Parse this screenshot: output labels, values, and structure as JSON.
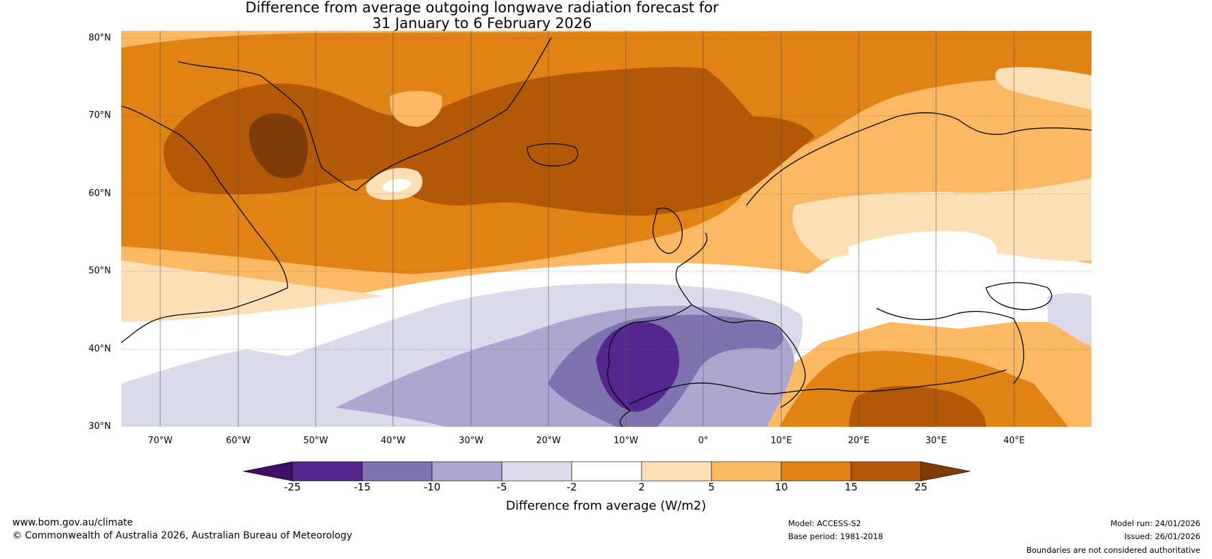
{
  "title": {
    "line1": "Difference from average outgoing longwave radiation forecast for",
    "line2": "31 January to 6 February 2026"
  },
  "map": {
    "lat_labels": [
      "80°N",
      "70°N",
      "60°N",
      "50°N",
      "40°N",
      "30°N"
    ],
    "lon_labels": [
      "70°W",
      "60°W",
      "50°W",
      "40°W",
      "30°W",
      "20°W",
      "10°W",
      "0°",
      "10°E",
      "20°E",
      "30°E",
      "40°E"
    ],
    "extent": {
      "lon_min": -75,
      "lon_max": 50,
      "lat_min": 30,
      "lat_max": 81
    }
  },
  "colorbar": {
    "ticks": [
      "-25",
      "-15",
      "-10",
      "-5",
      "-2",
      "2",
      "5",
      "10",
      "15",
      "25"
    ],
    "colors": [
      "#3f0f68",
      "#54278f",
      "#7e73ae",
      "#aca6d0",
      "#dadaeb",
      "#ffffff",
      "#fee0b6",
      "#fdb863",
      "#e08214",
      "#b35806",
      "#7f3b08"
    ],
    "label": "Difference from average (W/m2)"
  },
  "footer": {
    "website": "www.bom.gov.au/climate",
    "copyright": "© Commonwealth of Australia 2026, Australian Bureau of Meteorology",
    "model": "Model: ACCESS-S2",
    "base_period": "Base period: 1981-2018",
    "model_run": "Model run: 24/01/2026",
    "issued": "Issued: 26/01/2026",
    "disclaimer": "Boundaries are not considered authoritative"
  }
}
